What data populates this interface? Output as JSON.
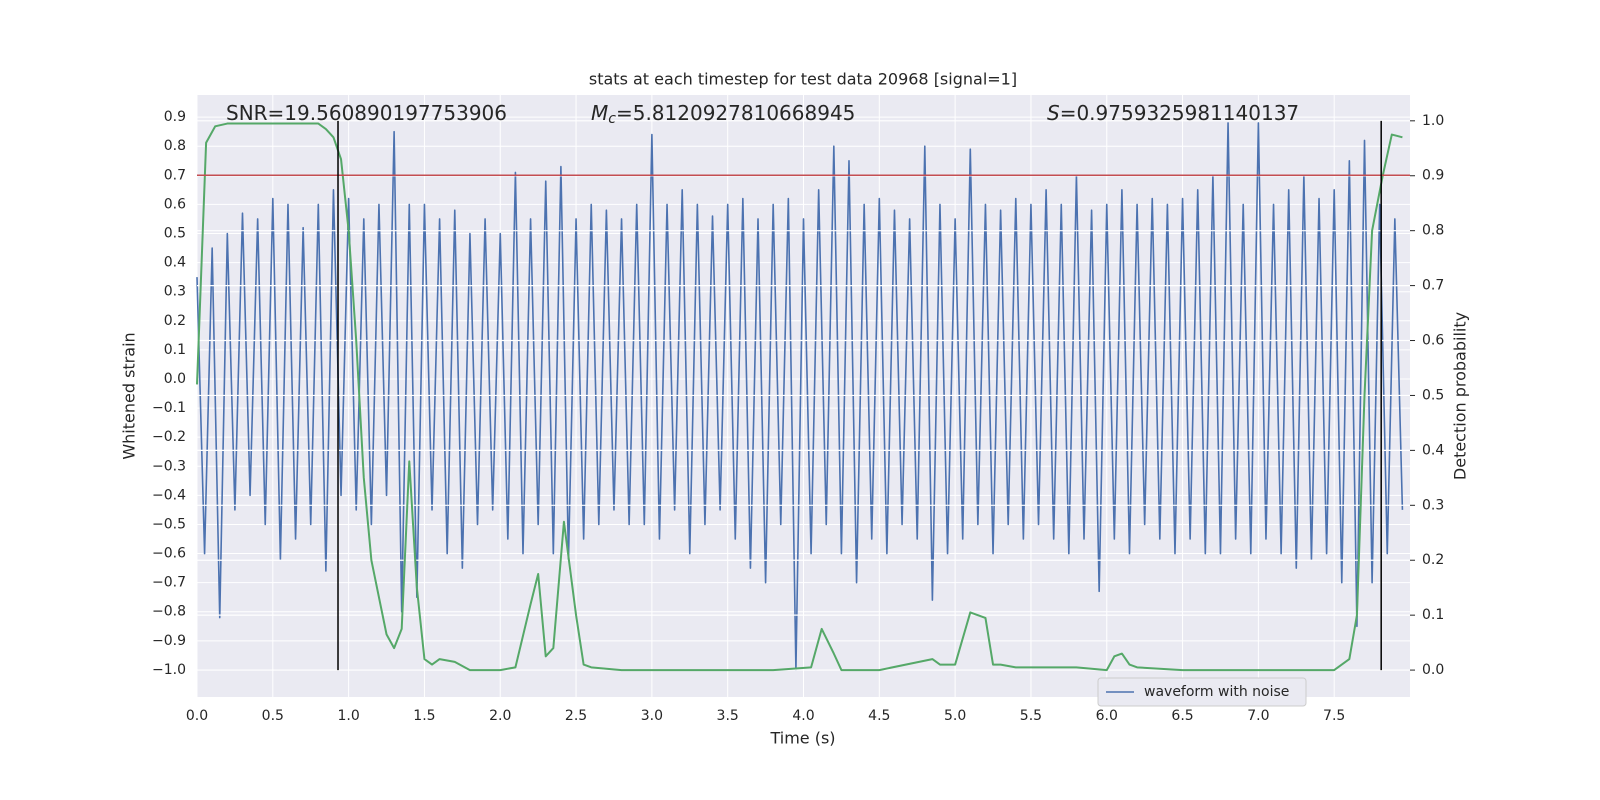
{
  "chart_data": {
    "type": "line",
    "title": "stats at each timestep for test data 20968 [signal=1]",
    "xlabel": "Time (s)",
    "ylabel": "Whitened strain",
    "y2label": "Detection probability",
    "annotations": [
      {
        "text": "SNR=19.560890197753906"
      },
      {
        "symbol": "M",
        "subscript": "c",
        "text": "=5.8120927810668945"
      },
      {
        "symbol": "S",
        "text": "=0.9759325981140137"
      }
    ],
    "xlim": [
      0,
      8.0
    ],
    "xticks": [
      {
        "value": 0,
        "label": "0.0"
      },
      0.5,
      {
        "value": 1,
        "label": "1.0"
      },
      1.5,
      {
        "value": 2,
        "label": "2.0"
      },
      2.5,
      {
        "value": 3,
        "label": "3.0"
      },
      3.5,
      {
        "value": 4,
        "label": "4.0"
      },
      4.5,
      {
        "value": 5,
        "label": "5.0"
      },
      5.5,
      {
        "value": 6,
        "label": "6.0"
      },
      6.5,
      {
        "value": 7,
        "label": "7.0"
      },
      7.5
    ],
    "ylim": [
      -1.093,
      0.976
    ],
    "yticks": [
      {
        "value": -1.0,
        "label": "−1.0"
      },
      {
        "value": -0.9,
        "label": "−0.9"
      },
      {
        "value": -0.8,
        "label": "−0.8"
      },
      {
        "value": -0.7,
        "label": "−0.7"
      },
      {
        "value": -0.6,
        "label": "−0.6"
      },
      {
        "value": -0.5,
        "label": "−0.5"
      },
      {
        "value": -0.4,
        "label": "−0.4"
      },
      {
        "value": -0.3,
        "label": "−0.3"
      },
      {
        "value": -0.2,
        "label": "−0.2"
      },
      {
        "value": -0.1,
        "label": "−0.1"
      },
      {
        "value": 0,
        "label": "0.0"
      },
      0.1,
      0.2,
      0.3,
      0.4,
      0.5,
      0.6,
      0.7,
      0.8,
      0.9
    ],
    "y2lim": [
      -0.049,
      1.047
    ],
    "y2ticks": [
      {
        "value": 0,
        "label": "0.0"
      },
      0.1,
      0.2,
      0.3,
      0.4,
      0.5,
      0.6,
      0.7,
      0.8,
      0.9,
      {
        "value": 1,
        "label": "1.0"
      }
    ],
    "grid": true,
    "legend": "lower right",
    "hlines": [
      {
        "y": 0.7,
        "color": "#c44e52"
      }
    ],
    "vlines": {
      "x": [
        0.93,
        7.81
      ],
      "y2": [
        0,
        1
      ],
      "color": "#000000"
    },
    "series": [
      {
        "name": "waveform with noise",
        "color": "#4c72b0",
        "x": [
          0,
          0.05,
          0.1,
          0.15,
          0.2,
          0.25,
          0.3,
          0.35,
          0.4,
          0.45,
          0.5,
          0.55,
          0.6,
          0.65,
          0.7,
          0.75,
          0.8,
          0.85,
          0.9,
          0.95,
          1,
          1.05,
          1.1,
          1.15,
          1.2,
          1.25,
          1.3,
          1.35,
          1.4,
          1.45,
          1.5,
          1.55,
          1.6,
          1.65,
          1.7,
          1.75,
          1.8,
          1.85,
          1.9,
          1.95,
          2,
          2.05,
          2.1,
          2.15,
          2.2,
          2.25,
          2.3,
          2.35,
          2.4,
          2.45,
          2.5,
          2.55,
          2.6,
          2.65,
          2.7,
          2.75,
          2.8,
          2.85,
          2.9,
          2.95,
          3,
          3.05,
          3.1,
          3.15,
          3.2,
          3.25,
          3.3,
          3.35,
          3.4,
          3.45,
          3.5,
          3.55,
          3.6,
          3.65,
          3.7,
          3.75,
          3.8,
          3.85,
          3.9,
          3.95,
          4,
          4.05,
          4.1,
          4.15,
          4.2,
          4.25,
          4.3,
          4.35,
          4.4,
          4.45,
          4.5,
          4.55,
          4.6,
          4.65,
          4.7,
          4.75,
          4.8,
          4.85,
          4.9,
          4.95,
          5,
          5.05,
          5.1,
          5.15,
          5.2,
          5.25,
          5.3,
          5.35,
          5.4,
          5.45,
          5.5,
          5.55,
          5.6,
          5.65,
          5.7,
          5.75,
          5.8,
          5.85,
          5.9,
          5.95,
          6,
          6.05,
          6.1,
          6.15,
          6.2,
          6.25,
          6.3,
          6.35,
          6.4,
          6.45,
          6.5,
          6.55,
          6.6,
          6.65,
          6.7,
          6.75,
          6.8,
          6.85,
          6.9,
          6.95,
          7,
          7.05,
          7.1,
          7.15,
          7.2,
          7.25,
          7.3,
          7.35,
          7.4,
          7.45,
          7.5,
          7.55,
          7.6,
          7.65,
          7.7,
          7.75,
          7.8,
          7.85,
          7.9,
          7.95
        ],
        "values": [
          0.35,
          -0.6,
          0.45,
          -0.82,
          0.5,
          -0.45,
          0.57,
          -0.4,
          0.55,
          -0.5,
          0.62,
          -0.62,
          0.6,
          -0.55,
          0.52,
          -0.5,
          0.6,
          -0.66,
          0.65,
          -0.4,
          0.62,
          -0.45,
          0.55,
          -0.5,
          0.6,
          -0.4,
          0.85,
          -0.8,
          0.6,
          -0.75,
          0.6,
          -0.45,
          0.55,
          -0.6,
          0.58,
          -0.65,
          0.5,
          -0.5,
          0.55,
          -0.45,
          0.5,
          -0.55,
          0.71,
          -0.6,
          0.55,
          -0.5,
          0.68,
          -0.6,
          0.73,
          -0.62,
          0.55,
          -0.55,
          0.6,
          -0.5,
          0.58,
          -0.45,
          0.55,
          -0.5,
          0.6,
          -0.5,
          0.84,
          -0.55,
          0.6,
          -0.45,
          0.65,
          -0.6,
          0.6,
          -0.5,
          0.56,
          -0.45,
          0.6,
          -0.55,
          0.62,
          -0.65,
          0.55,
          -0.7,
          0.6,
          -0.5,
          0.62,
          -1.0,
          0.55,
          -0.6,
          0.65,
          -0.5,
          0.8,
          -0.6,
          0.75,
          -0.7,
          0.6,
          -0.55,
          0.62,
          -0.6,
          0.58,
          -0.5,
          0.55,
          -0.55,
          0.8,
          -0.76,
          0.6,
          -0.6,
          0.55,
          -0.55,
          0.79,
          -0.5,
          0.6,
          -0.6,
          0.58,
          -0.5,
          0.62,
          -0.55,
          0.6,
          -0.5,
          0.65,
          -0.55,
          0.6,
          -0.6,
          0.7,
          -0.55,
          0.58,
          -0.73,
          0.6,
          -0.55,
          0.65,
          -0.6,
          0.6,
          -0.5,
          0.62,
          -0.55,
          0.6,
          -0.6,
          0.62,
          -0.55,
          0.65,
          -0.6,
          0.7,
          -0.6,
          0.88,
          -0.55,
          0.6,
          -0.6,
          0.88,
          -0.55,
          0.6,
          -0.6,
          0.65,
          -0.65,
          0.7,
          -0.62,
          0.62,
          -0.6,
          0.65,
          -0.7,
          0.75,
          -0.85,
          0.82,
          -0.7,
          0.6,
          -0.6,
          0.55,
          -0.45
        ]
      },
      {
        "color": "#55a868",
        "axis": "y2",
        "x": [
          0,
          0.06,
          0.12,
          0.2,
          0.3,
          0.4,
          0.5,
          0.6,
          0.7,
          0.8,
          0.85,
          0.9,
          0.95,
          1,
          1.05,
          1.1,
          1.15,
          1.25,
          1.3,
          1.35,
          1.4,
          1.45,
          1.5,
          1.55,
          1.6,
          1.7,
          1.8,
          1.9,
          2,
          2.1,
          2.2,
          2.25,
          2.3,
          2.35,
          2.42,
          2.5,
          2.55,
          2.6,
          2.8,
          3,
          3.2,
          3.5,
          3.8,
          4.05,
          4.12,
          4.2,
          4.25,
          4.5,
          4.85,
          4.9,
          5,
          5.1,
          5.2,
          5.25,
          5.3,
          5.4,
          5.8,
          6,
          6.05,
          6.1,
          6.15,
          6.2,
          6.5,
          7,
          7.5,
          7.6,
          7.65,
          7.7,
          7.75,
          7.82,
          7.88,
          7.95
        ],
        "values": [
          0.52,
          0.96,
          0.99,
          0.995,
          0.995,
          0.995,
          0.995,
          0.995,
          0.995,
          0.995,
          0.985,
          0.97,
          0.93,
          0.8,
          0.6,
          0.35,
          0.2,
          0.065,
          0.04,
          0.075,
          0.38,
          0.15,
          0.02,
          0.01,
          0.02,
          0.015,
          0.0,
          0.0,
          0.0,
          0.005,
          0.12,
          0.175,
          0.025,
          0.04,
          0.27,
          0.1,
          0.01,
          0.005,
          0.0,
          0.0,
          0.0,
          0.0,
          0.0,
          0.005,
          0.075,
          0.03,
          0.0,
          0.0,
          0.02,
          0.01,
          0.01,
          0.105,
          0.095,
          0.01,
          0.01,
          0.005,
          0.005,
          0.0,
          0.025,
          0.03,
          0.01,
          0.005,
          0.0,
          0.0,
          0.0,
          0.02,
          0.1,
          0.5,
          0.8,
          0.9,
          0.975,
          0.97
        ]
      }
    ]
  }
}
